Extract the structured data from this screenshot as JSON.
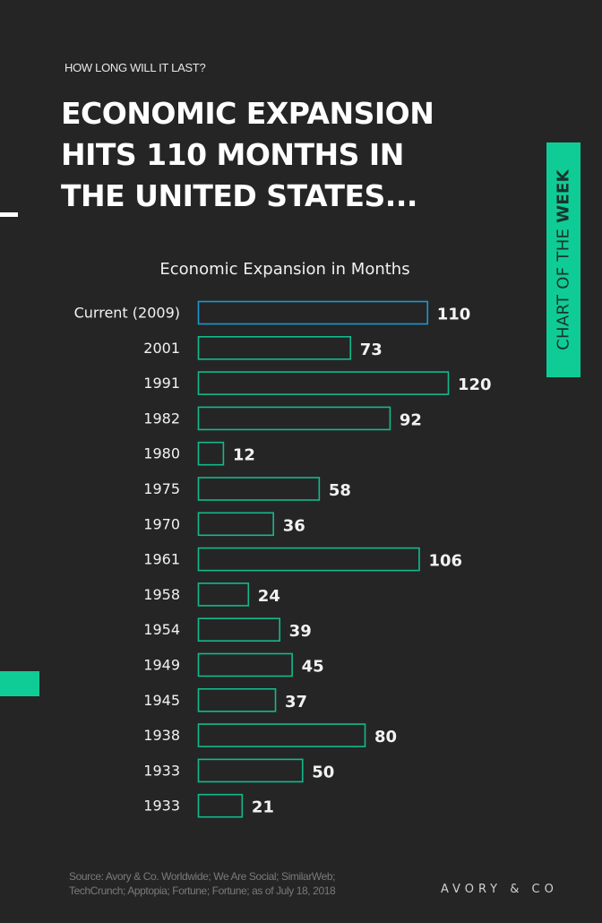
{
  "header": {
    "kicker": "HOW LONG WILL IT LAST?",
    "headline_lines": [
      "ECONOMIC EXPANSION",
      "HITS 110 MONTHS IN",
      "THE UNITED STATES..."
    ]
  },
  "tab": {
    "label_regular": "CHART OF THE ",
    "label_bold": "WEEK"
  },
  "colors": {
    "background": "#252525",
    "accent_green": "#0fcc96",
    "bar_outline_green": "#13b98c",
    "bar_outline_current": "#1a98d0",
    "text": "#f2f2f2"
  },
  "chart_data": {
    "type": "bar",
    "orientation": "horizontal",
    "title": "Economic Expansion in Months",
    "xlabel": "",
    "ylabel": "",
    "categories": [
      "Current (2009)",
      "2001",
      "1991",
      "1982",
      "1980",
      "1975",
      "1970",
      "1961",
      "1958",
      "1954",
      "1949",
      "1945",
      "1938",
      "1933",
      "1933"
    ],
    "values": [
      110,
      73,
      120,
      92,
      12,
      58,
      36,
      106,
      24,
      39,
      45,
      37,
      80,
      50,
      21
    ],
    "highlight_index": 0,
    "data_labels": true,
    "grid": false,
    "legend": "none",
    "xlim": [
      0,
      120
    ]
  },
  "footer": {
    "source_lines": [
      "Source: Avory & Co. Worldwide; We Are Social; SimilarWeb;",
      "TechCrunch; Apptopia; Fortune; Fortune; as of July 18, 2018"
    ],
    "brand": "AVORY & CO"
  }
}
